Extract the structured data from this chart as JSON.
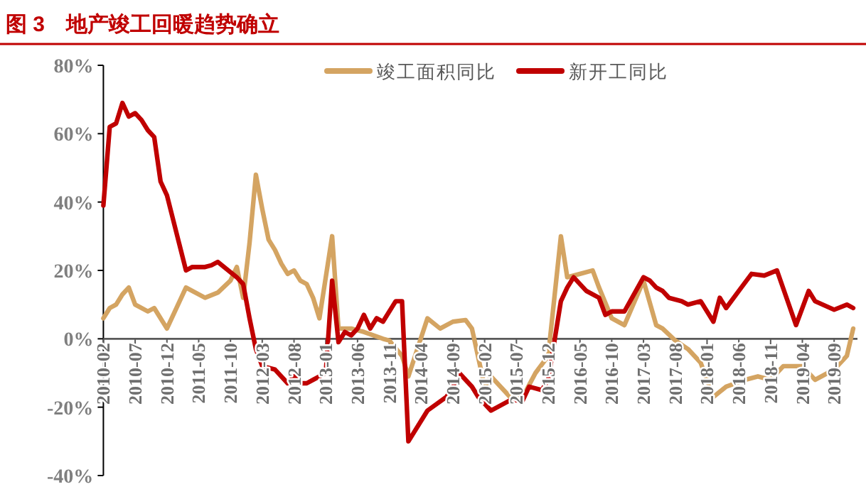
{
  "chart_data": {
    "type": "line",
    "title": "图 3　地产竣工回暖趋势确立",
    "xlim": [
      "2010-02",
      "2019-12"
    ],
    "xticks": [
      "2010-02",
      "2010-07",
      "2010-12",
      "2011-05",
      "2011-10",
      "2012-03",
      "2012-08",
      "2013-01",
      "2013-06",
      "2013-11",
      "2014-04",
      "2014-09",
      "2015-02",
      "2015-07",
      "2015-12",
      "2016-05",
      "2016-10",
      "2017-03",
      "2017-08",
      "2018-01",
      "2018-06",
      "2018-11",
      "2019-04",
      "2019-09"
    ],
    "ylim": [
      -40,
      80
    ],
    "yticks": [
      {
        "value": -40,
        "label": "-40%"
      },
      {
        "value": -20,
        "label": "-20%"
      },
      {
        "value": 0,
        "label": "0%"
      },
      {
        "value": 20,
        "label": "20%"
      },
      {
        "value": 40,
        "label": "40%"
      },
      {
        "value": 60,
        "label": "60%"
      },
      {
        "value": 80,
        "label": "80%"
      }
    ],
    "grid": false,
    "legend": "top",
    "line_style": "solid",
    "marker": "none",
    "series": [
      {
        "name": "竣工面积同比",
        "color": "#d4a462",
        "x": [
          "2010-02",
          "2010-03",
          "2010-04",
          "2010-05",
          "2010-06",
          "2010-07",
          "2010-09",
          "2010-10",
          "2010-12",
          "2011-03",
          "2011-06",
          "2011-08",
          "2011-10",
          "2011-11",
          "2011-12",
          "2012-01",
          "2012-02",
          "2012-03",
          "2012-04",
          "2012-05",
          "2012-06",
          "2012-07",
          "2012-08",
          "2012-09",
          "2012-10",
          "2012-11",
          "2012-12",
          "2013-02",
          "2013-03",
          "2013-05",
          "2013-07",
          "2013-10",
          "2013-11",
          "2014-01",
          "2014-02",
          "2014-05",
          "2014-07",
          "2014-09",
          "2014-11",
          "2014-12",
          "2015-02",
          "2015-03",
          "2015-06",
          "2015-08",
          "2015-10",
          "2015-12",
          "2016-02",
          "2016-03",
          "2016-05",
          "2016-07",
          "2016-08",
          "2016-10",
          "2016-12",
          "2017-03",
          "2017-05",
          "2017-06",
          "2017-08",
          "2017-10",
          "2017-12",
          "2018-02",
          "2018-04",
          "2018-07",
          "2018-09",
          "2018-11",
          "2019-01",
          "2019-04",
          "2019-06",
          "2019-09",
          "2019-11",
          "2019-12"
        ],
        "values": [
          6,
          9,
          10,
          13,
          15,
          10,
          8,
          9,
          3,
          15,
          12,
          13.5,
          17,
          21,
          12,
          28,
          48,
          38,
          29,
          26,
          22,
          19,
          20,
          17,
          16,
          12,
          6,
          30,
          3,
          3,
          2,
          0,
          -0.5,
          -5,
          -11,
          6,
          3,
          5,
          5.5,
          3,
          -14,
          -11,
          -17,
          -17,
          -10,
          -5,
          30,
          18,
          19,
          20,
          15,
          6,
          4,
          17,
          4,
          3,
          -0.5,
          -3,
          -7,
          -17,
          -14,
          -12,
          -11,
          -12,
          -8,
          -8,
          -12,
          -9,
          -5,
          3
        ]
      },
      {
        "name": "新开工同比",
        "color": "#c00000",
        "x": [
          "2010-02",
          "2010-03",
          "2010-04",
          "2010-05",
          "2010-06",
          "2010-07",
          "2010-08",
          "2010-09",
          "2010-10",
          "2010-11",
          "2010-12",
          "2011-03",
          "2011-04",
          "2011-05",
          "2011-06",
          "2011-07",
          "2011-08",
          "2011-09",
          "2011-11",
          "2011-12",
          "2012-01",
          "2012-02",
          "2012-03",
          "2012-05",
          "2012-07",
          "2012-08",
          "2012-09",
          "2012-10",
          "2012-11",
          "2012-12",
          "2013-01",
          "2013-02",
          "2013-03",
          "2013-04",
          "2013-05",
          "2013-06",
          "2013-07",
          "2013-08",
          "2013-09",
          "2013-10",
          "2013-12",
          "2014-01",
          "2014-02",
          "2014-05",
          "2014-08",
          "2014-09",
          "2014-10",
          "2014-12",
          "2015-01",
          "2015-03",
          "2015-06",
          "2015-08",
          "2015-09",
          "2015-11",
          "2015-12",
          "2016-02",
          "2016-03",
          "2016-04",
          "2016-06",
          "2016-08",
          "2016-09",
          "2016-10",
          "2016-12",
          "2017-03",
          "2017-04",
          "2017-05",
          "2017-06",
          "2017-07",
          "2017-09",
          "2017-10",
          "2017-12",
          "2018-02",
          "2018-03",
          "2018-04",
          "2018-06",
          "2018-08",
          "2018-10",
          "2018-12",
          "2019-03",
          "2019-05",
          "2019-06",
          "2019-09",
          "2019-11",
          "2019-12"
        ],
        "values": [
          39,
          62,
          63,
          69,
          65,
          66,
          64,
          61,
          59,
          46,
          42,
          20,
          21,
          21,
          21,
          21.5,
          22.5,
          21,
          18,
          16,
          6,
          -3,
          -8,
          -9,
          -13,
          -11,
          -13,
          -13,
          -12,
          -11,
          -10,
          17,
          -1,
          2,
          1,
          3,
          7,
          3,
          6,
          5,
          11,
          11,
          -30,
          -21,
          -17,
          -14,
          -10,
          -14,
          -17,
          -21,
          -18,
          -18,
          -14,
          -15,
          -12,
          11,
          15,
          18,
          14,
          12,
          7,
          8,
          8,
          18,
          17,
          15,
          14,
          12,
          11,
          10,
          11,
          5,
          12,
          9,
          14,
          19,
          18.5,
          20,
          4,
          14,
          11,
          8.5,
          10,
          9
        ]
      }
    ]
  }
}
